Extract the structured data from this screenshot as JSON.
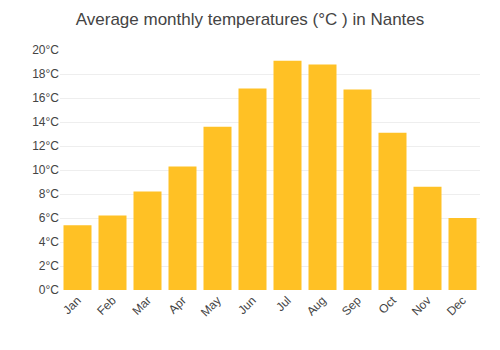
{
  "chart_data": {
    "type": "bar",
    "title": "Average monthly temperatures (°C ) in Nantes",
    "categories": [
      "Jan",
      "Feb",
      "Mar",
      "Apr",
      "May",
      "Jun",
      "Jul",
      "Aug",
      "Sep",
      "Oct",
      "Nov",
      "Dec"
    ],
    "values": [
      5.4,
      6.2,
      8.2,
      10.3,
      13.6,
      16.8,
      19.1,
      18.8,
      16.7,
      13.1,
      8.6,
      6.0
    ],
    "color": "#FFC125",
    "ylim": [
      0,
      20
    ],
    "yticks": [
      {
        "value": 0,
        "label": "0°C"
      },
      {
        "value": 2,
        "label": "2°C"
      },
      {
        "value": 4,
        "label": "4°C"
      },
      {
        "value": 6,
        "label": "6°C"
      },
      {
        "value": 8,
        "label": "8°C"
      },
      {
        "value": 10,
        "label": "10°C"
      },
      {
        "value": 12,
        "label": "12°C"
      },
      {
        "value": 14,
        "label": "14°C"
      },
      {
        "value": 16,
        "label": "16°C"
      },
      {
        "value": 18,
        "label": "18°C"
      },
      {
        "value": 20,
        "label": "20°C"
      }
    ],
    "grid": true
  }
}
